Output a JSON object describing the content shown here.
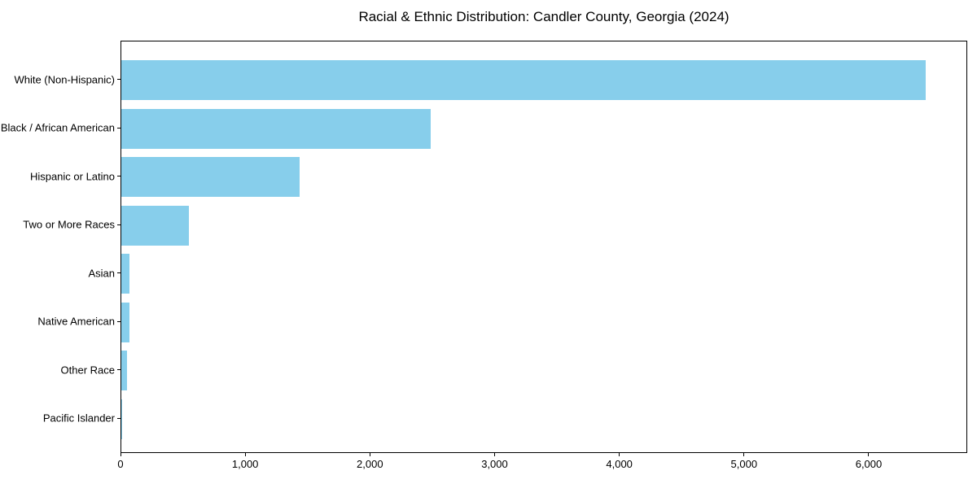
{
  "chart_data": {
    "type": "bar",
    "orientation": "horizontal",
    "title": "Racial & Ethnic Distribution: Candler County, Georgia (2024)",
    "categories": [
      "White (Non-Hispanic)",
      "Black / African American",
      "Hispanic or Latino",
      "Two or More Races",
      "Asian",
      "Native American",
      "Other Race",
      "Pacific Islander"
    ],
    "values": [
      6450,
      2480,
      1430,
      540,
      65,
      65,
      45,
      5
    ],
    "xlabel": "",
    "ylabel": "",
    "xlim": [
      0,
      6790
    ],
    "x_ticks": [
      0,
      1000,
      2000,
      3000,
      4000,
      5000,
      6000
    ],
    "x_tick_labels": [
      "0",
      "1,000",
      "2,000",
      "3,000",
      "4,000",
      "5,000",
      "6,000"
    ],
    "bar_color": "#87CEEB",
    "background_color": "#FFFFFF",
    "axis_color": "#000000",
    "grid": false,
    "legend": null
  }
}
